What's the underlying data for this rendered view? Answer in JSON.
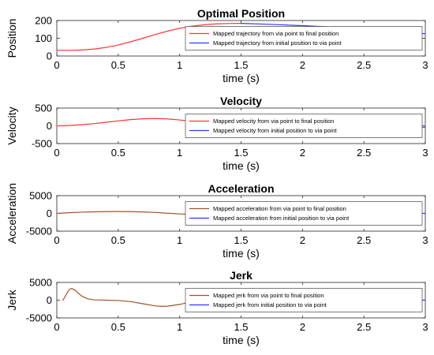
{
  "chart_data": [
    {
      "type": "line",
      "title": "Optimal Position",
      "xlabel": "time (s)",
      "ylabel": "Position",
      "xlim": [
        0,
        3
      ],
      "ylim": [
        0,
        200
      ],
      "xticks": [
        "0",
        "0.5",
        "1",
        "1.5",
        "2",
        "2.5",
        "3"
      ],
      "yticks": [
        "0",
        "100",
        "200"
      ],
      "legend_placement": "inside-right",
      "series": [
        {
          "name": "Mapped trajectory from via point to final position",
          "color": "#ff3333",
          "x": [
            0,
            0.1,
            0.2,
            0.3,
            0.4,
            0.5,
            0.6,
            0.7,
            0.8,
            0.9,
            1.0,
            1.1,
            1.2,
            1.3,
            1.4,
            1.5
          ],
          "y": [
            32,
            32,
            34,
            39,
            48,
            62,
            80,
            100,
            121,
            140,
            156,
            168,
            176,
            181,
            183,
            184
          ]
        },
        {
          "name": "Mapped trajectory from initial position to via point",
          "color": "#3333ff",
          "x": [
            1.5,
            1.75,
            2.0,
            2.25,
            2.5,
            2.75,
            3.0
          ],
          "y": [
            184,
            178,
            171,
            163,
            153,
            141,
            125
          ]
        }
      ]
    },
    {
      "type": "line",
      "title": "Velocity",
      "xlabel": "time (s)",
      "ylabel": "Velocity",
      "xlim": [
        0,
        3
      ],
      "ylim": [
        -500,
        500
      ],
      "xticks": [
        "0",
        "0.5",
        "1",
        "1.5",
        "2",
        "2.5",
        "3"
      ],
      "yticks": [
        "-500",
        "0",
        "500"
      ],
      "legend_placement": "inside-right",
      "series": [
        {
          "name": "Mapped velocity from via point to final position",
          "color": "#ff3333",
          "x": [
            0,
            0.1,
            0.2,
            0.3,
            0.4,
            0.5,
            0.6,
            0.7,
            0.8,
            0.9,
            1.0,
            1.1,
            1.2,
            1.3,
            1.4,
            1.5
          ],
          "y": [
            0,
            8,
            30,
            60,
            100,
            140,
            175,
            198,
            205,
            195,
            165,
            120,
            75,
            38,
            12,
            0
          ]
        },
        {
          "name": "Mapped velocity from initial position to via point",
          "color": "#3333ff",
          "x": [
            1.5,
            1.6,
            1.7,
            1.8,
            1.9,
            2.0,
            2.25,
            2.5,
            2.75,
            3.0
          ],
          "y": [
            0,
            -15,
            -35,
            -40,
            -30,
            -20,
            -25,
            -28,
            -32,
            -40
          ]
        }
      ]
    },
    {
      "type": "line",
      "title": "Acceleration",
      "xlabel": "time (s)",
      "ylabel": "Acceleration",
      "xlim": [
        0,
        3
      ],
      "ylim": [
        -5000,
        5000
      ],
      "xticks": [
        "0",
        "0.5",
        "1",
        "1.5",
        "2",
        "2.5",
        "3"
      ],
      "yticks": [
        "-5000",
        "0",
        "5000"
      ],
      "legend_placement": "inside-right",
      "series": [
        {
          "name": "Mapped acceleration from via point to final position",
          "color": "#a0522d",
          "x": [
            0,
            0.1,
            0.2,
            0.3,
            0.4,
            0.5,
            0.6,
            0.7,
            0.8,
            0.9,
            1.0,
            1.1,
            1.2,
            1.3,
            1.4,
            1.5
          ],
          "y": [
            0,
            200,
            350,
            450,
            500,
            520,
            500,
            420,
            260,
            50,
            -150,
            -300,
            -320,
            -240,
            -110,
            0
          ]
        },
        {
          "name": "Mapped acceleration from initial position to via point",
          "color": "#3333ff",
          "x": [
            1.5,
            1.55,
            1.6,
            1.65,
            1.7,
            1.75,
            1.8,
            1.85,
            1.9,
            1.95,
            2.0,
            2.1,
            2.2,
            2.4,
            2.6,
            2.8,
            3.0
          ],
          "y": [
            0,
            400,
            1000,
            1700,
            2200,
            2450,
            2400,
            2000,
            1400,
            800,
            350,
            0,
            -100,
            -80,
            -50,
            -30,
            0
          ]
        }
      ]
    },
    {
      "type": "line",
      "title": "Jerk",
      "xlabel": "time (s)",
      "ylabel": "Jerk",
      "xlim": [
        0,
        3
      ],
      "ylim": [
        -5000,
        5000
      ],
      "xticks": [
        "0",
        "0.5",
        "1",
        "1.5",
        "2",
        "2.5",
        "3"
      ],
      "yticks": [
        "-5000",
        "0",
        "5000"
      ],
      "legend_placement": "inside-right",
      "series": [
        {
          "name": "Mapped jerk from via point to final position",
          "color": "#a0522d",
          "x": [
            0.05,
            0.08,
            0.1,
            0.12,
            0.15,
            0.2,
            0.25,
            0.3,
            0.4,
            0.5,
            0.6,
            0.7,
            0.8,
            0.85,
            0.9,
            1.0,
            1.1,
            1.2,
            1.3,
            1.4,
            1.5
          ],
          "y": [
            0,
            1800,
            3000,
            3300,
            2800,
            1200,
            400,
            100,
            0,
            -100,
            -400,
            -1000,
            -1600,
            -1750,
            -1700,
            -1200,
            -400,
            300,
            500,
            350,
            0
          ]
        },
        {
          "name": "Mapped jerk from initial position to via point",
          "color": "#3333ff",
          "x": [
            1.5,
            1.55,
            1.6,
            1.65,
            1.7,
            1.75,
            1.8,
            1.85,
            1.9,
            2.0,
            2.2,
            2.5,
            3.0
          ],
          "y": [
            -500,
            -100,
            500,
            1100,
            1450,
            1300,
            700,
            0,
            -300,
            -200,
            0,
            0,
            0
          ]
        }
      ]
    }
  ]
}
